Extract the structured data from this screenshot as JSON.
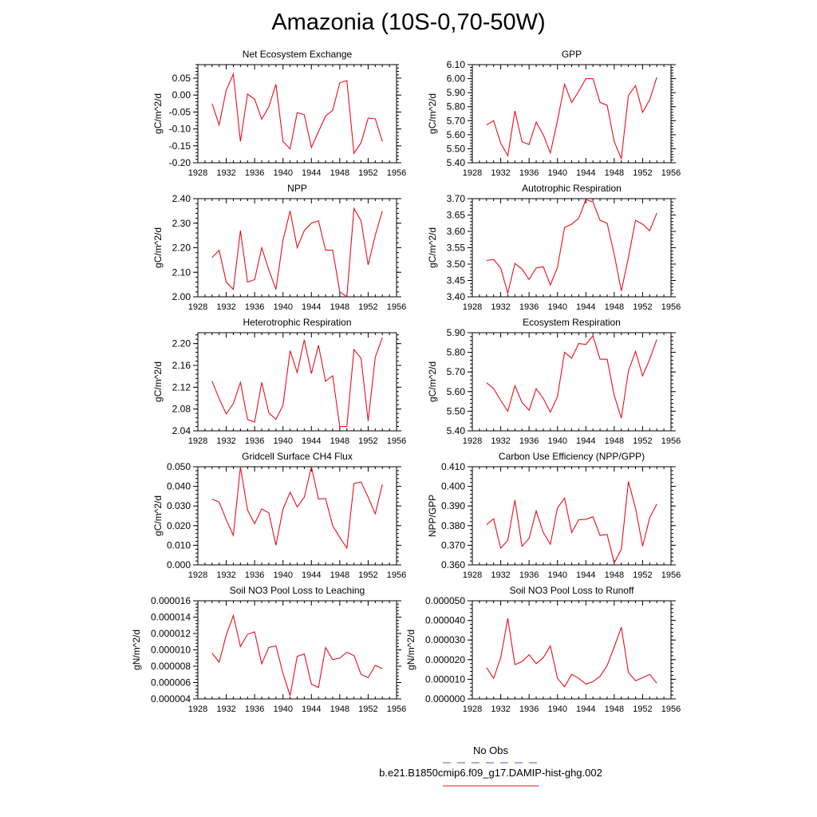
{
  "page_title": "Amazonia (10S-0,70-50W)",
  "colors": {
    "series": "#e8101a",
    "obs": "#5555cc",
    "axis": "#000000"
  },
  "legend": {
    "obs_label": "No Obs",
    "model_label": "b.e21.B1850cmip6.f09_g17.DAMIP-hist-ghg.002"
  },
  "chart_data": [
    {
      "type": "line",
      "title": "Net Ecosystem Exchange",
      "ylabel": "gC/m^2/d",
      "xlim": [
        1928,
        1956
      ],
      "ylim": [
        -0.2,
        0.09
      ],
      "xticks": [
        "1928",
        "1932",
        "1936",
        "1940",
        "1944",
        "1948",
        "1952",
        "1956"
      ],
      "yticks": [
        "-0.20",
        "-0.15",
        "-0.10",
        "-0.05",
        "0.00",
        "0.05"
      ],
      "x": [
        1930,
        1931,
        1932,
        1933,
        1934,
        1935,
        1936,
        1937,
        1938,
        1939,
        1940,
        1941,
        1942,
        1943,
        1944,
        1945,
        1946,
        1947,
        1948,
        1949,
        1950,
        1951,
        1952,
        1953,
        1954
      ],
      "values": [
        -0.025,
        -0.088,
        0.015,
        0.062,
        -0.137,
        0.003,
        -0.012,
        -0.071,
        -0.035,
        0.032,
        -0.137,
        -0.159,
        -0.052,
        -0.058,
        -0.155,
        -0.108,
        -0.062,
        -0.045,
        0.036,
        0.043,
        -0.172,
        -0.141,
        -0.068,
        -0.07,
        -0.137
      ]
    },
    {
      "type": "line",
      "title": "GPP",
      "ylabel": "gC/m^2/d",
      "xlim": [
        1928,
        1956
      ],
      "ylim": [
        5.4,
        6.1
      ],
      "xticks": [
        "1928",
        "1932",
        "1936",
        "1940",
        "1944",
        "1948",
        "1952",
        "1956"
      ],
      "yticks": [
        "5.40",
        "5.50",
        "5.60",
        "5.70",
        "5.80",
        "5.90",
        "6.00",
        "6.10"
      ],
      "x": [
        1930,
        1931,
        1932,
        1933,
        1934,
        1935,
        1936,
        1937,
        1938,
        1939,
        1940,
        1941,
        1942,
        1943,
        1944,
        1945,
        1946,
        1947,
        1948,
        1949,
        1950,
        1951,
        1952,
        1953,
        1954
      ],
      "values": [
        5.67,
        5.7,
        5.54,
        5.45,
        5.77,
        5.55,
        5.53,
        5.69,
        5.6,
        5.47,
        5.7,
        5.96,
        5.83,
        5.91,
        6.0,
        6.0,
        5.83,
        5.81,
        5.55,
        5.43,
        5.88,
        5.95,
        5.76,
        5.85,
        6.01
      ]
    },
    {
      "type": "line",
      "title": "NPP",
      "ylabel": "gC/m^2/d",
      "xlim": [
        1928,
        1956
      ],
      "ylim": [
        2.0,
        2.4
      ],
      "xticks": [
        "1928",
        "1932",
        "1936",
        "1940",
        "1944",
        "1948",
        "1952",
        "1956"
      ],
      "yticks": [
        "2.00",
        "2.10",
        "2.20",
        "2.30",
        "2.40"
      ],
      "x": [
        1930,
        1931,
        1932,
        1933,
        1934,
        1935,
        1936,
        1937,
        1938,
        1939,
        1940,
        1941,
        1942,
        1943,
        1944,
        1945,
        1946,
        1947,
        1948,
        1949,
        1950,
        1951,
        1952,
        1953,
        1954
      ],
      "values": [
        2.16,
        2.19,
        2.06,
        2.03,
        2.27,
        2.06,
        2.07,
        2.2,
        2.11,
        2.03,
        2.23,
        2.35,
        2.2,
        2.27,
        2.3,
        2.31,
        2.19,
        2.19,
        2.02,
        2.0,
        2.36,
        2.31,
        2.13,
        2.25,
        2.35
      ]
    },
    {
      "type": "line",
      "title": "Autotrophic Respiration",
      "ylabel": "gC/m^2/d",
      "xlim": [
        1928,
        1956
      ],
      "ylim": [
        3.4,
        3.7
      ],
      "xticks": [
        "1928",
        "1932",
        "1936",
        "1940",
        "1944",
        "1948",
        "1952",
        "1956"
      ],
      "yticks": [
        "3.40",
        "3.45",
        "3.50",
        "3.55",
        "3.60",
        "3.65",
        "3.70"
      ],
      "x": [
        1930,
        1931,
        1932,
        1933,
        1934,
        1935,
        1936,
        1937,
        1938,
        1939,
        1940,
        1941,
        1942,
        1943,
        1944,
        1945,
        1946,
        1947,
        1948,
        1949,
        1950,
        1951,
        1952,
        1953,
        1954
      ],
      "values": [
        3.511,
        3.514,
        3.488,
        3.411,
        3.502,
        3.485,
        3.453,
        3.488,
        3.492,
        3.436,
        3.49,
        3.612,
        3.622,
        3.64,
        3.697,
        3.69,
        3.634,
        3.625,
        3.53,
        3.418,
        3.52,
        3.634,
        3.622,
        3.602,
        3.656
      ]
    },
    {
      "type": "line",
      "title": "Heterotrophic Respiration",
      "ylabel": "gC/m^2/d",
      "xlim": [
        1928,
        1956
      ],
      "ylim": [
        2.04,
        2.22
      ],
      "xticks": [
        "1928",
        "1932",
        "1936",
        "1940",
        "1944",
        "1948",
        "1952",
        "1956"
      ],
      "yticks": [
        "2.04",
        "2.08",
        "2.12",
        "2.16",
        "2.20"
      ],
      "x": [
        1930,
        1931,
        1932,
        1933,
        1934,
        1935,
        1936,
        1937,
        1938,
        1939,
        1940,
        1941,
        1942,
        1943,
        1944,
        1945,
        1946,
        1947,
        1948,
        1949,
        1950,
        1951,
        1952,
        1953,
        1954
      ],
      "values": [
        2.131,
        2.099,
        2.071,
        2.09,
        2.129,
        2.061,
        2.056,
        2.129,
        2.073,
        2.061,
        2.087,
        2.187,
        2.147,
        2.207,
        2.145,
        2.197,
        2.131,
        2.141,
        2.048,
        2.048,
        2.189,
        2.173,
        2.058,
        2.175,
        2.211
      ]
    },
    {
      "type": "line",
      "title": "Ecosystem Respiration",
      "ylabel": "gC/m^2/d",
      "xlim": [
        1928,
        1956
      ],
      "ylim": [
        5.4,
        5.9
      ],
      "xticks": [
        "1928",
        "1932",
        "1936",
        "1940",
        "1944",
        "1948",
        "1952",
        "1956"
      ],
      "yticks": [
        "5.40",
        "5.50",
        "5.60",
        "5.70",
        "5.80",
        "5.90"
      ],
      "x": [
        1930,
        1931,
        1932,
        1933,
        1934,
        1935,
        1936,
        1937,
        1938,
        1939,
        1940,
        1941,
        1942,
        1943,
        1944,
        1945,
        1946,
        1947,
        1948,
        1949,
        1950,
        1951,
        1952,
        1953,
        1954
      ],
      "values": [
        5.645,
        5.615,
        5.555,
        5.5,
        5.63,
        5.545,
        5.505,
        5.615,
        5.565,
        5.495,
        5.575,
        5.8,
        5.77,
        5.845,
        5.84,
        5.885,
        5.765,
        5.765,
        5.58,
        5.465,
        5.705,
        5.805,
        5.68,
        5.765,
        5.865
      ]
    },
    {
      "type": "line",
      "title": "Gridcell Surface CH4 Flux",
      "ylabel": "gC/m^2/d",
      "xlim": [
        1928,
        1956
      ],
      "ylim": [
        0.0,
        0.05
      ],
      "xticks": [
        "1928",
        "1932",
        "1936",
        "1940",
        "1944",
        "1948",
        "1952",
        "1956"
      ],
      "yticks": [
        "0.000",
        "0.010",
        "0.020",
        "0.030",
        "0.040",
        "0.050"
      ],
      "x": [
        1930,
        1931,
        1932,
        1933,
        1934,
        1935,
        1936,
        1937,
        1938,
        1939,
        1940,
        1941,
        1942,
        1943,
        1944,
        1945,
        1946,
        1947,
        1948,
        1949,
        1950,
        1951,
        1952,
        1953,
        1954
      ],
      "values": [
        0.0335,
        0.032,
        0.023,
        0.015,
        0.05,
        0.028,
        0.021,
        0.0285,
        0.0265,
        0.01,
        0.0285,
        0.037,
        0.0295,
        0.0345,
        0.05,
        0.0335,
        0.0338,
        0.02,
        0.014,
        0.0085,
        0.0415,
        0.0422,
        0.0345,
        0.026,
        0.041
      ]
    },
    {
      "type": "line",
      "title": "Carbon Use Efficiency (NPP/GPP)",
      "ylabel": "NPP/GPP",
      "xlim": [
        1928,
        1956
      ],
      "ylim": [
        0.36,
        0.41
      ],
      "xticks": [
        "1928",
        "1932",
        "1936",
        "1940",
        "1944",
        "1948",
        "1952",
        "1956"
      ],
      "yticks": [
        "0.360",
        "0.370",
        "0.380",
        "0.390",
        "0.400",
        "0.410"
      ],
      "x": [
        1930,
        1931,
        1932,
        1933,
        1934,
        1935,
        1936,
        1937,
        1938,
        1939,
        1940,
        1941,
        1942,
        1943,
        1944,
        1945,
        1946,
        1947,
        1948,
        1949,
        1950,
        1951,
        1952,
        1953,
        1954
      ],
      "values": [
        0.3805,
        0.3835,
        0.3685,
        0.3725,
        0.393,
        0.3695,
        0.3735,
        0.3875,
        0.3765,
        0.3705,
        0.389,
        0.394,
        0.3765,
        0.383,
        0.3832,
        0.3845,
        0.375,
        0.3755,
        0.361,
        0.368,
        0.4025,
        0.389,
        0.3695,
        0.384,
        0.391
      ]
    },
    {
      "type": "line",
      "title": "Soil NO3 Pool Loss to Leaching",
      "ylabel": "gN/m^2/d",
      "xlim": [
        1928,
        1956
      ],
      "ylim": [
        4e-06,
        1.6e-05
      ],
      "xticks": [
        "1928",
        "1932",
        "1936",
        "1940",
        "1944",
        "1948",
        "1952",
        "1956"
      ],
      "yticks": [
        "0.000004",
        "0.000006",
        "0.000008",
        "0.000010",
        "0.000012",
        "0.000014",
        "0.000016"
      ],
      "x": [
        1930,
        1931,
        1932,
        1933,
        1934,
        1935,
        1936,
        1937,
        1938,
        1939,
        1940,
        1941,
        1942,
        1943,
        1944,
        1945,
        1946,
        1947,
        1948,
        1949,
        1950,
        1951,
        1952,
        1953,
        1954
      ],
      "values": [
        9.6e-06,
        8.5e-06,
        1.18e-05,
        1.42e-05,
        1.04e-05,
        1.19e-05,
        1.22e-05,
        8.3e-06,
        1.03e-05,
        1.05e-05,
        7.1e-06,
        4.4e-06,
        9.2e-06,
        9.5e-06,
        5.8e-06,
        5.4e-06,
        1.03e-05,
        8.8e-06,
        9e-06,
        9.7e-06,
        9.3e-06,
        7e-06,
        6.6e-06,
        8.1e-06,
        7.7e-06
      ]
    },
    {
      "type": "line",
      "title": "Soil NO3 Pool Loss to Runoff",
      "ylabel": "gN/m^2/d",
      "xlim": [
        1928,
        1956
      ],
      "ylim": [
        0.0,
        5e-05
      ],
      "xticks": [
        "1928",
        "1932",
        "1936",
        "1940",
        "1944",
        "1948",
        "1952",
        "1956"
      ],
      "yticks": [
        "0.000000",
        "0.000010",
        "0.000020",
        "0.000030",
        "0.000040",
        "0.000050"
      ],
      "x": [
        1930,
        1931,
        1932,
        1933,
        1934,
        1935,
        1936,
        1937,
        1938,
        1939,
        1940,
        1941,
        1942,
        1943,
        1944,
        1945,
        1946,
        1947,
        1948,
        1949,
        1950,
        1951,
        1952,
        1953,
        1954
      ],
      "values": [
        1.6e-05,
        1.05e-05,
        2.1e-05,
        4.1e-05,
        1.75e-05,
        1.9e-05,
        2.25e-05,
        1.8e-05,
        2.1e-05,
        2.7e-05,
        1.05e-05,
        6.2e-06,
        1.25e-05,
        1.05e-05,
        7.5e-06,
        8.8e-06,
        1.15e-05,
        1.7e-05,
        2.65e-05,
        3.65e-05,
        1.35e-05,
        9.2e-06,
        1.08e-05,
        1.25e-05,
        8e-06
      ]
    }
  ]
}
